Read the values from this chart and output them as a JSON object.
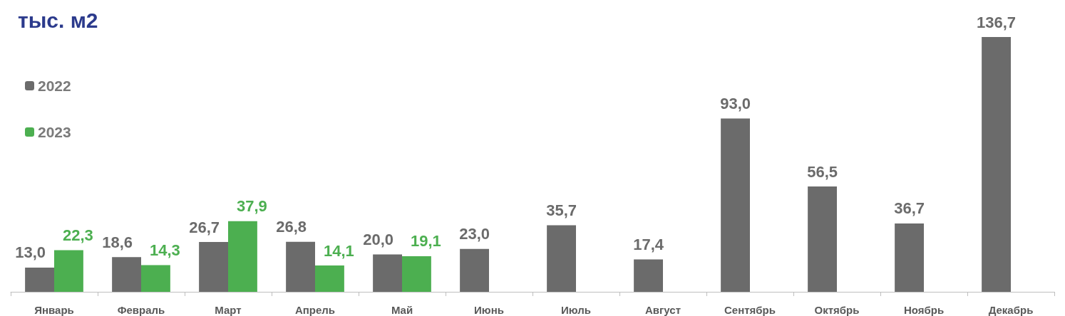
{
  "chart_data": {
    "type": "bar",
    "title": "тыс. м2",
    "categories": [
      "Январь",
      "Февраль",
      "Март",
      "Апрель",
      "Май",
      "Июнь",
      "Июль",
      "Август",
      "Сентябрь",
      "Октябрь",
      "Ноябрь",
      "Декабрь"
    ],
    "series": [
      {
        "name": "2022",
        "color": "#6b6b6b",
        "values": [
          13.0,
          18.6,
          26.7,
          26.8,
          20.0,
          23.0,
          35.7,
          17.4,
          93.0,
          56.5,
          36.7,
          136.7
        ],
        "value_labels": [
          "13,0",
          "18,6",
          "26,7",
          "26,8",
          "20,0",
          "23,0",
          "35,7",
          "17,4",
          "93,0",
          "56,5",
          "36,7",
          "136,7"
        ]
      },
      {
        "name": "2023",
        "color": "#4caf50",
        "values": [
          22.3,
          14.3,
          37.9,
          14.1,
          19.1,
          null,
          null,
          null,
          null,
          null,
          null,
          null
        ],
        "value_labels": [
          "22,3",
          "14,3",
          "37,9",
          "14,1",
          "19,1",
          null,
          null,
          null,
          null,
          null,
          null,
          null
        ]
      }
    ],
    "legend": "top left"
  }
}
